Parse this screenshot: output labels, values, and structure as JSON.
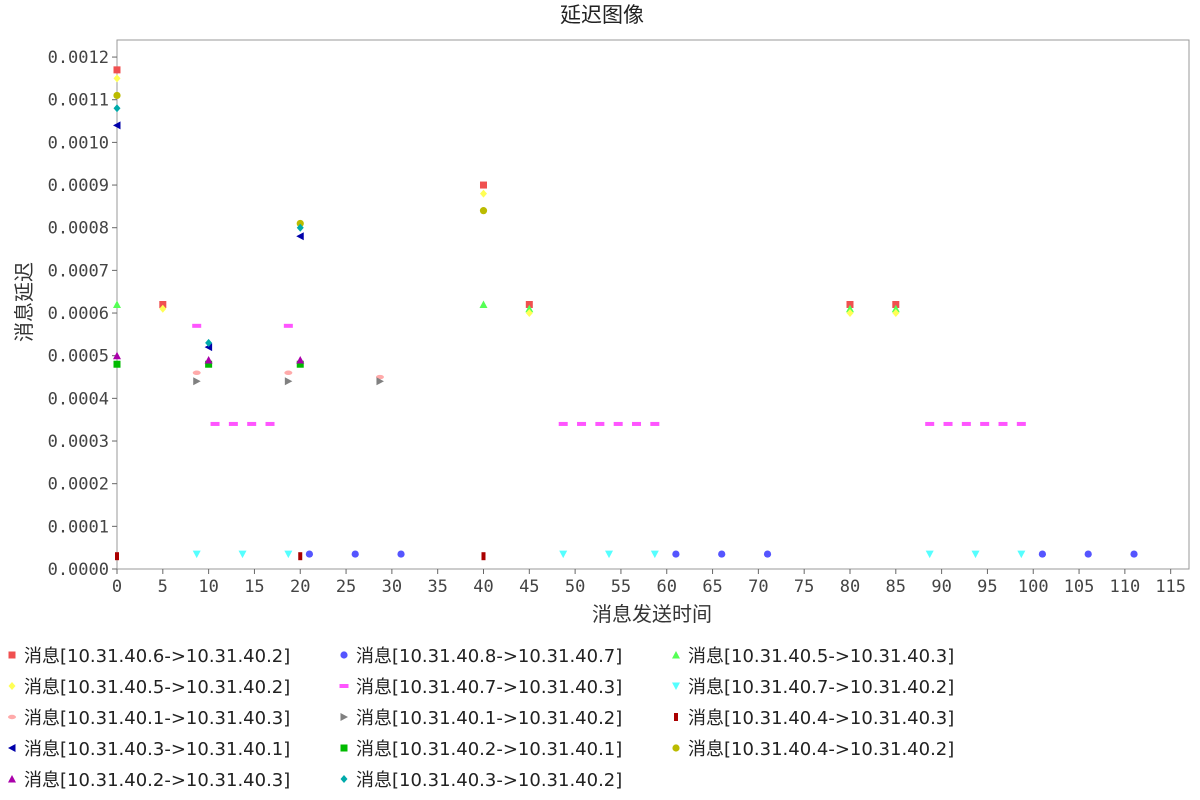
{
  "chart_data": {
    "type": "scatter",
    "title": "延迟图像",
    "xlabel": "消息发送时间",
    "ylabel": "消息延迟",
    "xlim": [
      0,
      117
    ],
    "ylim": [
      0,
      0.00124
    ],
    "xticks": [
      "0",
      "5",
      "10",
      "15",
      "20",
      "25",
      "30",
      "35",
      "40",
      "45",
      "50",
      "55",
      "60",
      "65",
      "70",
      "75",
      "80",
      "85",
      "90",
      "95",
      "100",
      "105",
      "110",
      "115"
    ],
    "yticks": [
      "0.0000",
      "0.0001",
      "0.0002",
      "0.0003",
      "0.0004",
      "0.0005",
      "0.0006",
      "0.0007",
      "0.0008",
      "0.0009",
      "0.0010",
      "0.0011",
      "0.0012"
    ],
    "legend_position": "bottom",
    "series": [
      {
        "name": "消息[10.31.40.6->10.31.40.2]",
        "color": "#f05050",
        "marker": "square",
        "points": [
          [
            0,
            0.00117
          ],
          [
            5,
            0.00062
          ],
          [
            40,
            0.0009
          ],
          [
            45,
            0.00062
          ],
          [
            80,
            0.00062
          ],
          [
            85,
            0.00062
          ]
        ]
      },
      {
        "name": "消息[10.31.40.8->10.31.40.7]",
        "color": "#5555ff",
        "marker": "circle",
        "points": [
          [
            21,
            3.5e-05
          ],
          [
            26,
            3.5e-05
          ],
          [
            31,
            3.5e-05
          ],
          [
            61,
            3.5e-05
          ],
          [
            66,
            3.5e-05
          ],
          [
            71,
            3.5e-05
          ],
          [
            101,
            3.5e-05
          ],
          [
            106,
            3.5e-05
          ],
          [
            111,
            3.5e-05
          ]
        ]
      },
      {
        "name": "消息[10.31.40.5->10.31.40.3]",
        "color": "#55ff55",
        "marker": "triangle-up",
        "points": [
          [
            0,
            0.00062
          ],
          [
            40,
            0.00062
          ],
          [
            45,
            0.00061
          ],
          [
            80,
            0.00061
          ],
          [
            85,
            0.00061
          ]
        ]
      },
      {
        "name": "消息[10.31.40.5->10.31.40.2]",
        "color": "#ffff55",
        "marker": "diamond",
        "points": [
          [
            0,
            0.00115
          ],
          [
            5,
            0.00061
          ],
          [
            40,
            0.00088
          ],
          [
            45,
            0.0006
          ],
          [
            80,
            0.0006
          ],
          [
            85,
            0.0006
          ]
        ]
      },
      {
        "name": "消息[10.31.40.7->10.31.40.3]",
        "color": "#ff55ff",
        "marker": "hbar",
        "points": [
          [
            8.7,
            0.00057
          ],
          [
            18.7,
            0.00057
          ],
          [
            10.7,
            0.00034
          ],
          [
            12.7,
            0.00034
          ],
          [
            14.7,
            0.00034
          ],
          [
            16.7,
            0.00034
          ],
          [
            48.7,
            0.00034
          ],
          [
            50.7,
            0.00034
          ],
          [
            52.7,
            0.00034
          ],
          [
            54.7,
            0.00034
          ],
          [
            56.7,
            0.00034
          ],
          [
            58.7,
            0.00034
          ],
          [
            88.7,
            0.00034
          ],
          [
            90.7,
            0.00034
          ],
          [
            92.7,
            0.00034
          ],
          [
            94.7,
            0.00034
          ],
          [
            96.7,
            0.00034
          ],
          [
            98.7,
            0.00034
          ]
        ]
      },
      {
        "name": "消息[10.31.40.7->10.31.40.2]",
        "color": "#55ffff",
        "marker": "triangle-down",
        "points": [
          [
            8.7,
            3.5e-05
          ],
          [
            13.7,
            3.5e-05
          ],
          [
            18.7,
            3.5e-05
          ],
          [
            48.7,
            3.5e-05
          ],
          [
            53.7,
            3.5e-05
          ],
          [
            58.7,
            3.5e-05
          ],
          [
            88.7,
            3.5e-05
          ],
          [
            93.7,
            3.5e-05
          ],
          [
            98.7,
            3.5e-05
          ]
        ]
      },
      {
        "name": "消息[10.31.40.1->10.31.40.3]",
        "color": "#ffaaaa",
        "marker": "ellipse",
        "points": [
          [
            8.7,
            0.00046
          ],
          [
            18.7,
            0.00046
          ],
          [
            28.7,
            0.00045
          ]
        ]
      },
      {
        "name": "消息[10.31.40.1->10.31.40.2]",
        "color": "#808080",
        "marker": "triangle-right",
        "points": [
          [
            8.7,
            0.00044
          ],
          [
            18.7,
            0.00044
          ],
          [
            28.7,
            0.00044
          ]
        ]
      },
      {
        "name": "消息[10.31.40.4->10.31.40.3]",
        "color": "#aa0000",
        "marker": "vbar",
        "points": [
          [
            0,
            3e-05
          ],
          [
            20,
            3e-05
          ],
          [
            40,
            3e-05
          ]
        ]
      },
      {
        "name": "消息[10.31.40.3->10.31.40.1]",
        "color": "#0000aa",
        "marker": "triangle-left",
        "points": [
          [
            0,
            0.00104
          ],
          [
            10,
            0.00052
          ],
          [
            20,
            0.00078
          ]
        ]
      },
      {
        "name": "消息[10.31.40.2->10.31.40.1]",
        "color": "#00bb00",
        "marker": "square",
        "points": [
          [
            0,
            0.00048
          ],
          [
            10,
            0.00048
          ],
          [
            20,
            0.00048
          ]
        ]
      },
      {
        "name": "消息[10.31.40.4->10.31.40.2]",
        "color": "#bbbb00",
        "marker": "circle",
        "points": [
          [
            0,
            0.00111
          ],
          [
            20,
            0.00081
          ],
          [
            40,
            0.00084
          ]
        ]
      },
      {
        "name": "消息[10.31.40.2->10.31.40.3]",
        "color": "#aa00aa",
        "marker": "triangle-up",
        "points": [
          [
            0,
            0.0005
          ],
          [
            10,
            0.00049
          ],
          [
            20,
            0.00049
          ]
        ]
      },
      {
        "name": "消息[10.31.40.3->10.31.40.2]",
        "color": "#00aaaa",
        "marker": "diamond",
        "points": [
          [
            0,
            0.00108
          ],
          [
            10,
            0.00053
          ],
          [
            20,
            0.0008
          ]
        ]
      }
    ]
  }
}
